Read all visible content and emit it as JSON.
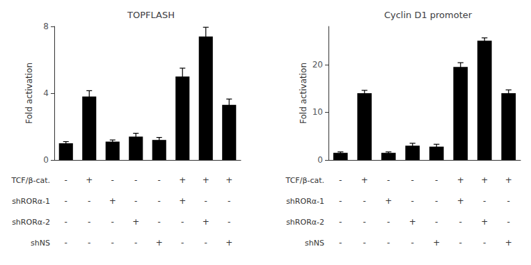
{
  "chart_data": [
    {
      "type": "bar",
      "title": "TOPFLASH",
      "ylabel": "Fold activation",
      "categories": [
        null,
        null,
        null,
        null,
        null,
        null,
        null,
        null
      ],
      "values": [
        1.0,
        3.8,
        1.1,
        1.4,
        1.2,
        5.0,
        7.4,
        3.3
      ],
      "errors": [
        0.1,
        0.35,
        0.1,
        0.2,
        0.15,
        0.5,
        0.55,
        0.35
      ],
      "color": "#000000",
      "ylim": [
        0,
        8
      ],
      "yticks": [
        0,
        4,
        8
      ],
      "grid": false,
      "tick_labels": "y",
      "table": {
        "rows": [
          "TCF/β-cat.",
          "shRORα-1",
          "shRORα-2",
          "shNS"
        ],
        "cells": [
          [
            "-",
            "+",
            "-",
            "-",
            "-",
            "+",
            "+",
            "+"
          ],
          [
            "-",
            "-",
            "+",
            "-",
            "-",
            "+",
            "-",
            "-"
          ],
          [
            "-",
            "-",
            "-",
            "+",
            "-",
            "-",
            "+",
            "-"
          ],
          [
            "-",
            "-",
            "-",
            "-",
            "+",
            "-",
            "-",
            "+"
          ]
        ]
      }
    },
    {
      "type": "bar",
      "title": "Cyclin D1 promoter",
      "ylabel": "Fold activation",
      "categories": [
        null,
        null,
        null,
        null,
        null,
        null,
        null,
        null
      ],
      "values": [
        1.5,
        14.0,
        1.5,
        3.0,
        2.8,
        19.5,
        25.0,
        14.0
      ],
      "errors": [
        0.2,
        0.6,
        0.2,
        0.5,
        0.5,
        0.9,
        0.6,
        0.7
      ],
      "color": "#000000",
      "ylim": [
        0,
        28
      ],
      "yticks": [
        0,
        10,
        20
      ],
      "grid": false,
      "tick_labels": "y",
      "table": {
        "rows": [
          "TCF/β-cat.",
          "shRORα-1",
          "shRORα-2",
          "shNS"
        ],
        "cells": [
          [
            "-",
            "+",
            "-",
            "-",
            "-",
            "+",
            "+",
            "+"
          ],
          [
            "-",
            "-",
            "+",
            "-",
            "-",
            "+",
            "-",
            "-"
          ],
          [
            "-",
            "-",
            "-",
            "+",
            "-",
            "-",
            "+",
            "-"
          ],
          [
            "-",
            "-",
            "-",
            "-",
            "+",
            "-",
            "-",
            "+"
          ]
        ]
      }
    }
  ]
}
